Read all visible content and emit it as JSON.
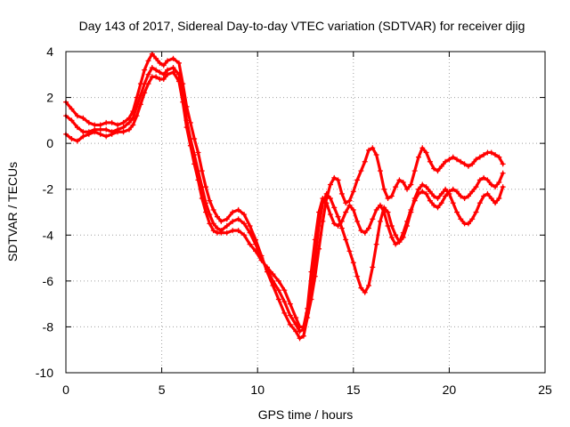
{
  "chart_data": {
    "type": "scatter",
    "title": "Day 143 of 2017, Sidereal Day-to-day VTEC variation (SDTVAR) for receiver djig",
    "xlabel": "GPS time / hours",
    "ylabel": "SDTVAR / TECUs",
    "xlim": [
      0,
      25
    ],
    "ylim": [
      -10,
      4
    ],
    "xticks": [
      0,
      5,
      10,
      15,
      20,
      25
    ],
    "yticks": [
      4,
      2,
      0,
      -2,
      -4,
      -6,
      -8,
      -10
    ],
    "grid": true,
    "marker": "+",
    "color": "#ff0000",
    "series": [
      {
        "x": [
          0.0,
          0.3,
          0.6,
          0.9,
          1.2,
          1.5,
          1.8,
          2.1,
          2.4,
          2.7,
          3.0,
          3.3,
          3.5,
          3.7,
          3.9,
          4.1,
          4.3,
          4.5,
          4.7,
          4.9,
          5.1,
          5.3,
          5.6,
          5.9,
          6.1,
          6.3,
          6.5,
          6.7,
          6.9,
          7.1,
          7.3,
          7.5,
          7.7,
          7.9,
          8.1,
          8.4,
          8.7,
          9.0,
          9.3,
          9.6,
          9.9,
          10.2,
          10.5,
          10.8,
          11.1,
          11.4,
          11.7,
          12.0,
          12.2,
          12.4,
          12.6,
          12.8,
          13.0,
          13.2,
          13.4,
          13.6,
          13.8,
          14.0,
          14.2,
          14.4,
          14.6,
          14.8,
          15.0,
          15.2,
          15.4,
          15.6,
          15.8,
          16.0,
          16.2,
          16.4,
          16.6,
          16.8,
          17.0,
          17.2,
          17.4,
          17.6,
          17.8,
          18.0,
          18.2,
          18.4,
          18.6,
          18.8,
          19.0,
          19.2,
          19.4,
          19.6,
          19.8,
          20.0,
          20.2,
          20.4,
          20.6,
          20.8,
          21.0,
          21.2,
          21.4,
          21.6,
          21.8,
          22.0,
          22.2,
          22.4,
          22.6,
          22.8
        ],
        "y": [
          1.8,
          1.5,
          1.2,
          1.1,
          0.9,
          0.8,
          0.8,
          0.9,
          0.9,
          0.8,
          0.9,
          1.1,
          1.4,
          2.0,
          2.6,
          3.2,
          3.6,
          3.9,
          3.7,
          3.5,
          3.4,
          3.6,
          3.7,
          3.5,
          2.6,
          1.6,
          0.9,
          0.2,
          -0.4,
          -1.2,
          -1.9,
          -2.5,
          -2.9,
          -3.2,
          -3.4,
          -3.3,
          -3.0,
          -2.9,
          -3.1,
          -3.6,
          -4.2,
          -4.9,
          -5.6,
          -6.2,
          -6.8,
          -7.4,
          -7.9,
          -8.2,
          -8.5,
          -8.4,
          -7.6,
          -6.8,
          -5.8,
          -4.6,
          -3.4,
          -2.4,
          -1.8,
          -1.5,
          -1.6,
          -2.2,
          -2.6,
          -2.5,
          -2.1,
          -1.6,
          -1.2,
          -0.8,
          -0.3,
          -0.2,
          -0.5,
          -1.2,
          -2.0,
          -2.4,
          -2.3,
          -1.9,
          -1.6,
          -1.7,
          -2.0,
          -1.8,
          -1.2,
          -0.6,
          -0.2,
          -0.4,
          -0.8,
          -1.1,
          -1.2,
          -1.0,
          -0.8,
          -0.7,
          -0.6,
          -0.7,
          -0.8,
          -0.9,
          -1.0,
          -0.9,
          -0.7,
          -0.6,
          -0.5,
          -0.4,
          -0.4,
          -0.5,
          -0.6,
          -0.9
        ]
      },
      {
        "x": [
          0.0,
          0.3,
          0.6,
          0.9,
          1.2,
          1.5,
          1.8,
          2.1,
          2.4,
          2.7,
          3.0,
          3.3,
          3.5,
          3.7,
          3.9,
          4.1,
          4.3,
          4.5,
          4.7,
          4.9,
          5.1,
          5.3,
          5.6,
          5.9,
          6.1,
          6.3,
          6.5,
          6.7,
          6.9,
          7.1,
          7.3,
          7.5,
          7.7,
          7.9,
          8.1,
          8.4,
          8.7,
          9.0,
          9.3,
          9.6,
          9.9,
          10.2,
          10.5,
          10.8,
          11.1,
          11.4,
          11.7,
          12.0,
          12.2,
          12.4,
          12.6,
          12.8,
          13.0,
          13.2,
          13.4,
          13.6,
          13.8,
          14.0,
          14.2,
          14.4,
          14.6,
          14.8,
          15.0,
          15.2,
          15.4,
          15.6,
          15.8,
          16.0,
          16.2,
          16.4,
          16.6,
          16.8,
          17.0,
          17.2,
          17.4,
          17.6,
          17.8,
          18.0,
          18.2,
          18.4,
          18.6,
          18.8,
          19.0,
          19.2,
          19.4,
          19.6,
          19.8,
          20.0,
          20.2,
          20.4,
          20.6,
          20.8,
          21.0,
          21.2,
          21.4,
          21.6,
          21.8,
          22.0,
          22.2,
          22.4,
          22.6,
          22.8
        ],
        "y": [
          1.2,
          1.0,
          0.7,
          0.5,
          0.5,
          0.6,
          0.6,
          0.6,
          0.5,
          0.6,
          0.7,
          0.9,
          1.1,
          1.6,
          2.1,
          2.6,
          3.0,
          3.3,
          3.2,
          3.1,
          3.0,
          3.2,
          3.3,
          3.0,
          2.1,
          1.0,
          0.2,
          -0.5,
          -1.2,
          -1.9,
          -2.6,
          -3.1,
          -3.5,
          -3.7,
          -3.8,
          -3.6,
          -3.4,
          -3.3,
          -3.5,
          -3.9,
          -4.4,
          -5.0,
          -5.5,
          -6.0,
          -6.4,
          -6.9,
          -7.5,
          -7.9,
          -8.2,
          -8.1,
          -7.4,
          -6.2,
          -5.0,
          -3.6,
          -2.6,
          -2.2,
          -2.4,
          -2.8,
          -3.2,
          -3.7,
          -4.2,
          -4.7,
          -5.2,
          -5.8,
          -6.3,
          -6.5,
          -6.2,
          -5.4,
          -4.4,
          -3.4,
          -2.8,
          -3.0,
          -3.6,
          -4.0,
          -4.3,
          -4.1,
          -3.6,
          -3.0,
          -2.4,
          -2.0,
          -1.8,
          -1.9,
          -2.1,
          -2.3,
          -2.4,
          -2.2,
          -2.0,
          -2.2,
          -2.6,
          -3.0,
          -3.3,
          -3.5,
          -3.5,
          -3.3,
          -3.0,
          -2.6,
          -2.3,
          -2.2,
          -2.4,
          -2.6,
          -2.4,
          -1.9
        ]
      },
      {
        "x": [
          0.0,
          0.3,
          0.6,
          0.9,
          1.2,
          1.5,
          1.8,
          2.1,
          2.4,
          2.7,
          3.0,
          3.3,
          3.5,
          3.7,
          3.9,
          4.1,
          4.3,
          4.5,
          4.7,
          4.9,
          5.1,
          5.3,
          5.6,
          5.9,
          6.1,
          6.3,
          6.5,
          6.7,
          6.9,
          7.1,
          7.3,
          7.5,
          7.7,
          7.9,
          8.1,
          8.4,
          8.7,
          9.0,
          9.3,
          9.6,
          9.9,
          10.2,
          10.5,
          10.8,
          11.1,
          11.4,
          11.7,
          12.0,
          12.2,
          12.4,
          12.6,
          12.8,
          13.0,
          13.2,
          13.4,
          13.6,
          13.8,
          14.0,
          14.2,
          14.4,
          14.6,
          14.8,
          15.0,
          15.2,
          15.4,
          15.6,
          15.8,
          16.0,
          16.2,
          16.4,
          16.6,
          16.8,
          17.0,
          17.2,
          17.4,
          17.6,
          17.8,
          18.0,
          18.2,
          18.4,
          18.6,
          18.8,
          19.0,
          19.2,
          19.4,
          19.6,
          19.8,
          20.0,
          20.2,
          20.4,
          20.6,
          20.8,
          21.0,
          21.2,
          21.4,
          21.6,
          21.8,
          22.0,
          22.2,
          22.4,
          22.6,
          22.8
        ],
        "y": [
          0.4,
          0.2,
          0.1,
          0.3,
          0.4,
          0.5,
          0.4,
          0.3,
          0.4,
          0.5,
          0.5,
          0.6,
          0.8,
          1.2,
          1.7,
          2.2,
          2.6,
          2.9,
          2.9,
          2.8,
          2.8,
          3.0,
          3.1,
          2.7,
          1.8,
          0.7,
          -0.1,
          -0.9,
          -1.6,
          -2.4,
          -3.0,
          -3.5,
          -3.8,
          -3.9,
          -3.9,
          -3.9,
          -3.8,
          -3.8,
          -4.0,
          -4.4,
          -4.7,
          -5.1,
          -5.4,
          -5.7,
          -6.0,
          -6.4,
          -7.0,
          -7.6,
          -8.0,
          -8.0,
          -7.2,
          -5.6,
          -4.2,
          -3.0,
          -2.4,
          -2.6,
          -3.1,
          -3.5,
          -3.6,
          -3.4,
          -3.0,
          -2.7,
          -2.9,
          -3.4,
          -3.8,
          -3.9,
          -3.7,
          -3.3,
          -2.9,
          -2.7,
          -3.0,
          -3.6,
          -4.1,
          -4.4,
          -4.3,
          -3.9,
          -3.4,
          -2.9,
          -2.5,
          -2.2,
          -2.1,
          -2.2,
          -2.5,
          -2.7,
          -2.8,
          -2.6,
          -2.3,
          -2.1,
          -2.0,
          -2.1,
          -2.3,
          -2.4,
          -2.3,
          -2.1,
          -1.9,
          -1.6,
          -1.5,
          -1.6,
          -1.8,
          -1.9,
          -1.7,
          -1.3
        ]
      }
    ]
  }
}
